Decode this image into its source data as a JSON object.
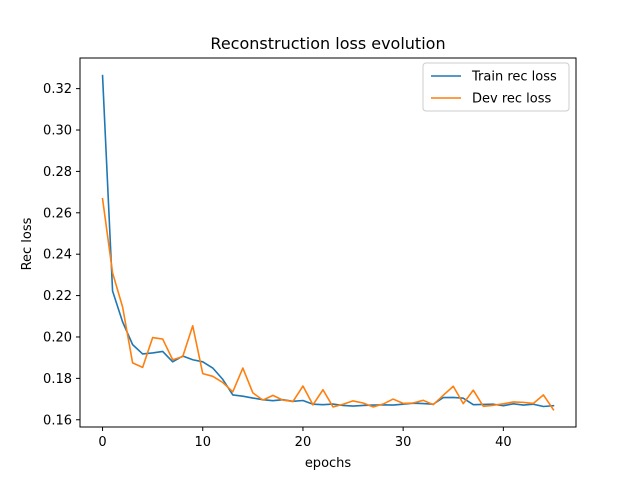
{
  "chart_data": {
    "type": "line",
    "title": "Reconstruction loss evolution",
    "xlabel": "epochs",
    "ylabel": "Rec loss",
    "xlim": [
      -2.25,
      47.25
    ],
    "ylim": [
      0.1565,
      0.3348
    ],
    "xticks": [
      0,
      10,
      20,
      30,
      40
    ],
    "yticks": [
      0.16,
      0.18,
      0.2,
      0.22,
      0.24,
      0.26,
      0.28,
      0.3,
      0.32
    ],
    "ytick_labels": [
      "0.16",
      "0.18",
      "0.20",
      "0.22",
      "0.24",
      "0.26",
      "0.28",
      "0.30",
      "0.32"
    ],
    "grid": false,
    "legend_position": "top-right",
    "x": [
      0,
      1,
      2,
      3,
      4,
      5,
      6,
      7,
      8,
      9,
      10,
      11,
      12,
      13,
      14,
      15,
      16,
      17,
      18,
      19,
      20,
      21,
      22,
      23,
      24,
      25,
      26,
      27,
      28,
      29,
      30,
      31,
      32,
      33,
      34,
      35,
      36,
      37,
      38,
      39,
      40,
      41,
      42,
      43,
      44,
      45
    ],
    "series": [
      {
        "name": "Train rec loss",
        "color": "#1f77b4",
        "values": [
          0.3263,
          0.2222,
          0.2073,
          0.1963,
          0.1918,
          0.1923,
          0.193,
          0.188,
          0.1908,
          0.189,
          0.188,
          0.185,
          0.1795,
          0.172,
          0.1714,
          0.1705,
          0.1697,
          0.1692,
          0.1697,
          0.1689,
          0.1693,
          0.1675,
          0.1673,
          0.1676,
          0.1669,
          0.1666,
          0.1669,
          0.1671,
          0.1672,
          0.1671,
          0.1675,
          0.168,
          0.1678,
          0.1675,
          0.1707,
          0.1708,
          0.1704,
          0.1673,
          0.1674,
          0.1675,
          0.1668,
          0.1677,
          0.1671,
          0.1675,
          0.1664,
          0.1668
        ]
      },
      {
        "name": "Dev rec loss",
        "color": "#ff7f0e",
        "values": [
          0.2668,
          0.231,
          0.2145,
          0.1875,
          0.1853,
          0.1997,
          0.199,
          0.189,
          0.1905,
          0.2054,
          0.1823,
          0.181,
          0.178,
          0.1735,
          0.185,
          0.173,
          0.1695,
          0.1718,
          0.1695,
          0.1688,
          0.1763,
          0.1672,
          0.1745,
          0.1662,
          0.1675,
          0.1691,
          0.1681,
          0.1662,
          0.1676,
          0.17,
          0.1679,
          0.1681,
          0.1694,
          0.1673,
          0.1718,
          0.1762,
          0.1678,
          0.1743,
          0.1665,
          0.167,
          0.1677,
          0.1686,
          0.1684,
          0.1679,
          0.172,
          0.1648
        ]
      }
    ]
  }
}
